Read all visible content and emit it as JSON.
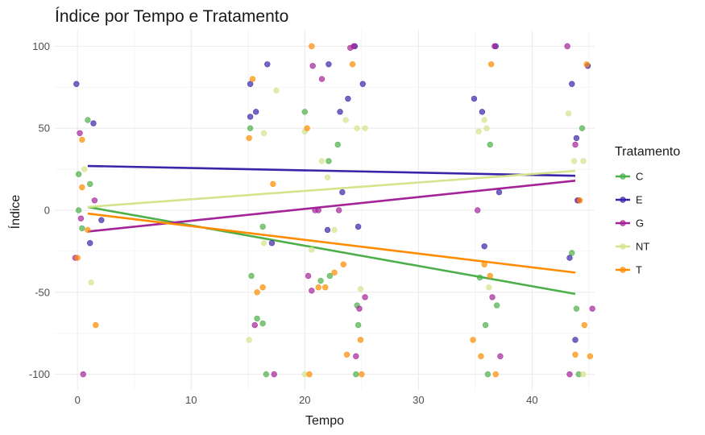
{
  "chart_data": {
    "type": "scatter",
    "title": "Índice por Tempo e Tratamento",
    "xlabel": "Tempo",
    "ylabel": "Índice",
    "xlim": [
      -2,
      45.5
    ],
    "ylim": [
      -110,
      110
    ],
    "x_ticks": [
      0,
      10,
      20,
      30,
      40
    ],
    "y_ticks": [
      -100,
      -50,
      0,
      50,
      100
    ],
    "grid": true,
    "legend": {
      "title": "Tratamento",
      "position": "right"
    },
    "series": [
      {
        "name": "C",
        "color": "#4DAF4A",
        "trend": [
          [
            0.9,
            2
          ],
          [
            43.8,
            -51
          ]
        ],
        "points": [
          [
            0.1,
            22
          ],
          [
            0.1,
            0
          ],
          [
            0.4,
            -11
          ],
          [
            0.9,
            55
          ],
          [
            1.1,
            16
          ],
          [
            15.2,
            50
          ],
          [
            15.3,
            -40
          ],
          [
            15.8,
            -66
          ],
          [
            16.3,
            -69
          ],
          [
            16.3,
            -10
          ],
          [
            16.6,
            -100
          ],
          [
            20.0,
            60
          ],
          [
            21.4,
            -43
          ],
          [
            22.1,
            30
          ],
          [
            22.2,
            -40
          ],
          [
            22.9,
            40
          ],
          [
            24.5,
            -100
          ],
          [
            24.6,
            -58
          ],
          [
            24.7,
            -70
          ],
          [
            35.4,
            -41
          ],
          [
            35.9,
            -70
          ],
          [
            36.1,
            -100
          ],
          [
            36.3,
            40
          ],
          [
            36.9,
            -58
          ],
          [
            43.5,
            -26
          ],
          [
            43.9,
            -60
          ],
          [
            44.1,
            -100
          ],
          [
            44.4,
            50
          ]
        ]
      },
      {
        "name": "E",
        "color": "#3A24A8",
        "trend": [
          [
            0.9,
            27
          ],
          [
            43.8,
            21
          ]
        ],
        "points": [
          [
            -0.1,
            77
          ],
          [
            1.1,
            -20
          ],
          [
            1.4,
            53
          ],
          [
            2.1,
            -6
          ],
          [
            15.2,
            57
          ],
          [
            15.2,
            77
          ],
          [
            15.7,
            60
          ],
          [
            16.7,
            89
          ],
          [
            17.1,
            -20
          ],
          [
            22.0,
            -12
          ],
          [
            22.1,
            89
          ],
          [
            23.1,
            60
          ],
          [
            23.3,
            11
          ],
          [
            23.8,
            68
          ],
          [
            24.4,
            100
          ],
          [
            24.7,
            -10
          ],
          [
            25.1,
            77
          ],
          [
            34.9,
            68
          ],
          [
            35.6,
            60
          ],
          [
            35.8,
            -22
          ],
          [
            37.1,
            11
          ],
          [
            36.8,
            100
          ],
          [
            43.3,
            -29
          ],
          [
            43.5,
            77
          ],
          [
            43.8,
            -79
          ],
          [
            43.9,
            44
          ],
          [
            44.0,
            6
          ],
          [
            44.9,
            88
          ]
        ]
      },
      {
        "name": "G",
        "color": "#A42398",
        "trend": [
          [
            0.9,
            -13
          ],
          [
            43.8,
            18
          ]
        ],
        "points": [
          [
            -0.2,
            -29
          ],
          [
            0.2,
            47
          ],
          [
            0.3,
            -5
          ],
          [
            0.5,
            -100
          ],
          [
            1.5,
            6
          ],
          [
            15.6,
            -70
          ],
          [
            17.3,
            -100
          ],
          [
            20.3,
            -40
          ],
          [
            20.6,
            -49
          ],
          [
            20.7,
            88
          ],
          [
            20.9,
            0
          ],
          [
            21.2,
            0
          ],
          [
            21.5,
            80
          ],
          [
            23.0,
            0
          ],
          [
            24.0,
            99
          ],
          [
            24.3,
            100
          ],
          [
            24.5,
            -89
          ],
          [
            24.8,
            -60
          ],
          [
            25.3,
            -53
          ],
          [
            35.2,
            0
          ],
          [
            36.5,
            -53
          ],
          [
            36.7,
            100
          ],
          [
            37.2,
            -89
          ],
          [
            43.1,
            100
          ],
          [
            43.3,
            -100
          ],
          [
            43.8,
            40
          ],
          [
            44.1,
            6
          ],
          [
            45.3,
            -60
          ]
        ]
      },
      {
        "name": "NT",
        "color": "#D4E38C",
        "trend": [
          [
            0.9,
            2
          ],
          [
            43.8,
            24
          ]
        ],
        "points": [
          [
            0.6,
            25
          ],
          [
            1.2,
            -44
          ],
          [
            15.1,
            -79
          ],
          [
            16.4,
            47
          ],
          [
            16.4,
            -20
          ],
          [
            17.5,
            73
          ],
          [
            20.0,
            -100
          ],
          [
            20.0,
            48
          ],
          [
            20.6,
            -24
          ],
          [
            21.5,
            30
          ],
          [
            22.0,
            20
          ],
          [
            22.6,
            -12
          ],
          [
            23.6,
            55
          ],
          [
            24.6,
            50
          ],
          [
            24.9,
            -48
          ],
          [
            25.3,
            50
          ],
          [
            35.3,
            48
          ],
          [
            35.8,
            55
          ],
          [
            36.0,
            50
          ],
          [
            36.2,
            -47
          ],
          [
            43.2,
            59
          ],
          [
            43.7,
            30
          ],
          [
            44.5,
            30
          ],
          [
            44.5,
            -100
          ]
        ]
      },
      {
        "name": "T",
        "color": "#FF8C00",
        "trend": [
          [
            0.9,
            -2
          ],
          [
            43.8,
            -38
          ]
        ],
        "points": [
          [
            0.0,
            -29
          ],
          [
            0.4,
            43
          ],
          [
            0.4,
            14
          ],
          [
            0.9,
            -12
          ],
          [
            1.6,
            -70
          ],
          [
            15.1,
            44
          ],
          [
            15.4,
            80
          ],
          [
            15.8,
            -50
          ],
          [
            16.3,
            -47
          ],
          [
            17.2,
            16
          ],
          [
            20.2,
            50
          ],
          [
            20.4,
            -100
          ],
          [
            20.6,
            100
          ],
          [
            21.2,
            -47
          ],
          [
            21.8,
            -47
          ],
          [
            22.6,
            -38
          ],
          [
            23.4,
            -33
          ],
          [
            23.7,
            -88
          ],
          [
            24.2,
            89
          ],
          [
            24.9,
            -79
          ],
          [
            25.0,
            -100
          ],
          [
            34.8,
            -79
          ],
          [
            35.5,
            -89
          ],
          [
            35.8,
            -33
          ],
          [
            36.3,
            -40
          ],
          [
            36.4,
            89
          ],
          [
            36.8,
            -100
          ],
          [
            43.8,
            -88
          ],
          [
            44.2,
            6
          ],
          [
            44.6,
            -70
          ],
          [
            45.1,
            -89
          ],
          [
            44.8,
            89
          ]
        ]
      }
    ]
  }
}
